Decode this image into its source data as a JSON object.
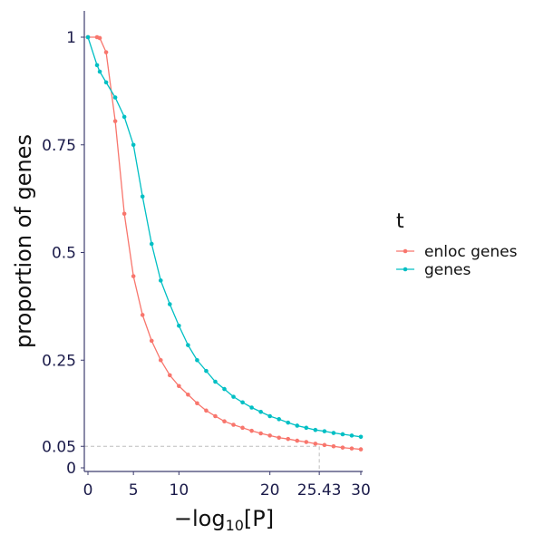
{
  "chart_data": {
    "type": "line",
    "xlabel": {
      "prefix": "−log",
      "subscript": "10",
      "bracketed": "[P]"
    },
    "ylabel": "proportion of genes",
    "xlim": [
      0,
      30
    ],
    "ylim": [
      0,
      1
    ],
    "x_ticks": [
      {
        "value": 0,
        "label": "0"
      },
      {
        "value": 5,
        "label": "5"
      },
      {
        "value": 10,
        "label": "10"
      },
      {
        "value": 20,
        "label": "20"
      },
      {
        "value": 25.43,
        "label": "25.43"
      },
      {
        "value": 30,
        "label": "30"
      }
    ],
    "y_ticks": [
      {
        "value": 0,
        "label": "0"
      },
      {
        "value": 0.05,
        "label": "0.05"
      },
      {
        "value": 0.25,
        "label": "0.25"
      },
      {
        "value": 0.5,
        "label": "0.5"
      },
      {
        "value": 0.75,
        "label": "0.75"
      },
      {
        "value": 1,
        "label": "1"
      }
    ],
    "reference_point": {
      "x": 25.43,
      "y": 0.05
    },
    "grid": false,
    "legend": {
      "title": "t",
      "placement": "right"
    },
    "series": [
      {
        "name": "enloc genes",
        "color": "#f8766d",
        "x": [
          0,
          1,
          1.3,
          2,
          3,
          4,
          5,
          6,
          7,
          8,
          9,
          10,
          11,
          12,
          13,
          14,
          15,
          16,
          17,
          18,
          19,
          20,
          21,
          22,
          23,
          24,
          25,
          26,
          27,
          28,
          29,
          30
        ],
        "y": [
          1.0,
          1.0,
          0.998,
          0.965,
          0.805,
          0.59,
          0.445,
          0.355,
          0.295,
          0.25,
          0.215,
          0.19,
          0.17,
          0.15,
          0.133,
          0.12,
          0.108,
          0.1,
          0.093,
          0.086,
          0.08,
          0.075,
          0.07,
          0.067,
          0.063,
          0.06,
          0.056,
          0.053,
          0.05,
          0.047,
          0.045,
          0.043
        ]
      },
      {
        "name": "genes",
        "color": "#00bfc4",
        "x": [
          0,
          1,
          1.3,
          2,
          3,
          4,
          5,
          6,
          7,
          8,
          9,
          10,
          11,
          12,
          13,
          14,
          15,
          16,
          17,
          18,
          19,
          20,
          21,
          22,
          23,
          24,
          25,
          26,
          27,
          28,
          29,
          30
        ],
        "y": [
          1.0,
          0.935,
          0.92,
          0.895,
          0.86,
          0.815,
          0.75,
          0.63,
          0.52,
          0.435,
          0.38,
          0.33,
          0.285,
          0.25,
          0.225,
          0.2,
          0.183,
          0.165,
          0.152,
          0.14,
          0.13,
          0.12,
          0.113,
          0.105,
          0.098,
          0.093,
          0.088,
          0.085,
          0.081,
          0.078,
          0.075,
          0.072
        ]
      }
    ]
  }
}
